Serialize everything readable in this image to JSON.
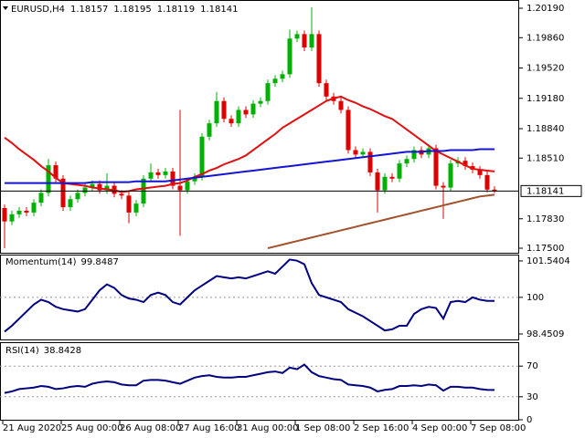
{
  "chart_data": [
    {
      "type": "candlestick",
      "title": "EURUSD,H4",
      "categories": [
        "21 Aug 2020",
        null,
        null,
        null,
        null,
        null,
        null,
        null,
        "25 Aug 00:00",
        null,
        null,
        null,
        null,
        null,
        null,
        null,
        "26 Aug 08:00",
        null,
        null,
        null,
        null,
        null,
        null,
        null,
        "27 Aug 16:00",
        null,
        null,
        null,
        null,
        null,
        null,
        null,
        "31 Aug 00:00",
        null,
        null,
        null,
        null,
        null,
        null,
        null,
        "1 Sep 08:00",
        null,
        null,
        null,
        null,
        null,
        null,
        null,
        "2 Sep 16:00",
        null,
        null,
        null,
        null,
        null,
        null,
        null,
        "4 Sep 00:00",
        null,
        null,
        null,
        null,
        null,
        null,
        null,
        "7 Sep 08:00",
        null,
        null,
        null
      ],
      "ohlc": [
        [
          1.1795,
          1.1799,
          1.175,
          1.178
        ],
        [
          1.178,
          1.1792,
          1.1776,
          1.1788
        ],
        [
          1.1788,
          1.1796,
          1.1784,
          1.1792
        ],
        [
          1.1792,
          1.1796,
          1.1786,
          1.179
        ],
        [
          1.179,
          1.1805,
          1.1786,
          1.1801
        ],
        [
          1.1801,
          1.1816,
          1.1797,
          1.1812
        ],
        [
          1.1812,
          1.185,
          1.1808,
          1.1843
        ],
        [
          1.1843,
          1.1847,
          1.1824,
          1.1828
        ],
        [
          1.1828,
          1.1832,
          1.1792,
          1.1796
        ],
        [
          1.1796,
          1.1809,
          1.1792,
          1.1805
        ],
        [
          1.1805,
          1.1816,
          1.1801,
          1.1812
        ],
        [
          1.1812,
          1.1822,
          1.1808,
          1.1818
        ],
        [
          1.1818,
          1.1826,
          1.1814,
          1.1822
        ],
        [
          1.1822,
          1.1826,
          1.1811,
          1.1815
        ],
        [
          1.1815,
          1.1834,
          1.1811,
          1.182
        ],
        [
          1.182,
          1.1824,
          1.1807,
          1.1811
        ],
        [
          1.1811,
          1.1815,
          1.1805,
          1.1809
        ],
        [
          1.1809,
          1.1813,
          1.1778,
          1.179
        ],
        [
          1.179,
          1.1804,
          1.1786,
          1.18
        ],
        [
          1.18,
          1.1832,
          1.1796,
          1.1828
        ],
        [
          1.1828,
          1.1845,
          1.1824,
          1.1835
        ],
        [
          1.1835,
          1.1839,
          1.1828,
          1.1832
        ],
        [
          1.1832,
          1.184,
          1.1828,
          1.1836
        ],
        [
          1.1836,
          1.184,
          1.1816,
          1.182
        ],
        [
          1.182,
          1.1905,
          1.1764,
          1.1815
        ],
        [
          1.1815,
          1.1829,
          1.1811,
          1.1825
        ],
        [
          1.1825,
          1.1834,
          1.1821,
          1.183
        ],
        [
          1.183,
          1.1879,
          1.1826,
          1.1875
        ],
        [
          1.1875,
          1.1894,
          1.1871,
          1.189
        ],
        [
          1.189,
          1.1925,
          1.1886,
          1.1915
        ],
        [
          1.1915,
          1.1919,
          1.1891,
          1.1895
        ],
        [
          1.1895,
          1.1899,
          1.1886,
          1.189
        ],
        [
          1.189,
          1.1909,
          1.1886,
          1.1905
        ],
        [
          1.1905,
          1.1909,
          1.1896,
          1.19
        ],
        [
          1.19,
          1.1916,
          1.1896,
          1.1912
        ],
        [
          1.1912,
          1.1919,
          1.1908,
          1.1915
        ],
        [
          1.1915,
          1.1939,
          1.1911,
          1.1935
        ],
        [
          1.1935,
          1.1944,
          1.1931,
          1.194
        ],
        [
          1.194,
          1.1949,
          1.1936,
          1.1945
        ],
        [
          1.1945,
          1.1995,
          1.1941,
          1.1985
        ],
        [
          1.1985,
          1.1994,
          1.1981,
          1.199
        ],
        [
          1.199,
          1.1994,
          1.1971,
          1.1975
        ],
        [
          1.1975,
          1.202,
          1.1971,
          1.199
        ],
        [
          1.199,
          1.1994,
          1.1931,
          1.1935
        ],
        [
          1.1935,
          1.1939,
          1.1916,
          1.192
        ],
        [
          1.192,
          1.1924,
          1.1911,
          1.1915
        ],
        [
          1.1915,
          1.1919,
          1.1901,
          1.1905
        ],
        [
          1.1905,
          1.1909,
          1.1856,
          1.186
        ],
        [
          1.186,
          1.1864,
          1.1851,
          1.1855
        ],
        [
          1.1855,
          1.1862,
          1.1851,
          1.1858
        ],
        [
          1.1858,
          1.1862,
          1.1831,
          1.1835
        ],
        [
          1.1835,
          1.1839,
          1.179,
          1.1815
        ],
        [
          1.1815,
          1.1834,
          1.1811,
          1.183
        ],
        [
          1.183,
          1.1834,
          1.1824,
          1.1828
        ],
        [
          1.1828,
          1.1849,
          1.1824,
          1.1845
        ],
        [
          1.1845,
          1.1854,
          1.1841,
          1.185
        ],
        [
          1.185,
          1.1864,
          1.1846,
          1.186
        ],
        [
          1.186,
          1.1864,
          1.1851,
          1.1855
        ],
        [
          1.1855,
          1.1866,
          1.1851,
          1.1862
        ],
        [
          1.1862,
          1.1866,
          1.1816,
          1.182
        ],
        [
          1.182,
          1.1824,
          1.1783,
          1.1818
        ],
        [
          1.1818,
          1.1849,
          1.1814,
          1.1845
        ],
        [
          1.1845,
          1.1852,
          1.1841,
          1.1848
        ],
        [
          1.1848,
          1.1852,
          1.1838,
          1.1842
        ],
        [
          1.1842,
          1.1846,
          1.1834,
          1.1838
        ],
        [
          1.1838,
          1.1842,
          1.1828,
          1.1832
        ],
        [
          1.1832,
          1.1836,
          1.18127,
          1.18157
        ],
        [
          1.18157,
          1.18195,
          1.18119,
          1.18141
        ]
      ],
      "up_color": "#00b000",
      "down_color": "#e00000",
      "series": [
        {
          "color": "#e01010",
          "values": [
            1.1874,
            1.1868,
            1.1861,
            1.1855,
            1.1849,
            1.1842,
            1.1836,
            1.1829,
            1.1823,
            1.1822,
            1.1821,
            1.182,
            1.1818,
            1.1817,
            1.1816,
            1.1815,
            1.1813,
            1.1814,
            1.1816,
            1.1817,
            1.1818,
            1.1819,
            1.182,
            1.1822,
            1.1823,
            1.1826,
            1.183,
            1.1833,
            1.1837,
            1.184,
            1.1844,
            1.1847,
            1.185,
            1.1854,
            1.186,
            1.1866,
            1.1872,
            1.1878,
            1.1885,
            1.189,
            1.1895,
            1.19,
            1.1905,
            1.191,
            1.1915,
            1.1918,
            1.192,
            1.1916,
            1.1913,
            1.1909,
            1.1906,
            1.1902,
            1.1898,
            1.1895,
            1.1889,
            1.1883,
            1.1877,
            1.1871,
            1.1865,
            1.1859,
            1.1855,
            1.1851,
            1.1847,
            1.1843,
            1.1839,
            1.1838,
            1.1837,
            1.1836
          ]
        },
        {
          "color": "#1414d2",
          "values": [
            1.1823,
            1.1823,
            1.1823,
            1.1823,
            1.1823,
            1.1823,
            1.1823,
            1.1823,
            1.1823,
            1.1823,
            1.1823,
            1.1823,
            1.1824,
            1.1824,
            1.1824,
            1.1824,
            1.1824,
            1.1824,
            1.1825,
            1.1825,
            1.1825,
            1.1825,
            1.1825,
            1.1826,
            1.1827,
            1.1828,
            1.1829,
            1.183,
            1.1831,
            1.1832,
            1.1833,
            1.1834,
            1.1835,
            1.1836,
            1.1837,
            1.1838,
            1.1839,
            1.184,
            1.1841,
            1.1842,
            1.1843,
            1.1844,
            1.1845,
            1.1846,
            1.1847,
            1.1848,
            1.1849,
            1.185,
            1.1851,
            1.1852,
            1.1853,
            1.1854,
            1.1855,
            1.1856,
            1.1857,
            1.1858,
            1.1858,
            1.1858,
            1.1859,
            1.1859,
            1.1859,
            1.186,
            1.186,
            1.186,
            1.186,
            1.1861,
            1.1861,
            1.1861
          ]
        },
        {
          "color": "#a0522d",
          "values": [
            null,
            null,
            null,
            null,
            null,
            null,
            null,
            null,
            null,
            null,
            null,
            null,
            null,
            null,
            null,
            null,
            null,
            null,
            null,
            null,
            null,
            null,
            null,
            null,
            null,
            null,
            null,
            null,
            null,
            null,
            null,
            null,
            null,
            null,
            null,
            null,
            1.175,
            1.1752,
            1.1754,
            1.1756,
            1.1758,
            1.176,
            1.1762,
            1.1764,
            1.1766,
            1.1768,
            1.177,
            1.1772,
            1.1774,
            1.1776,
            1.1778,
            1.178,
            1.1782,
            1.1784,
            1.1786,
            1.1788,
            1.179,
            1.1792,
            1.1794,
            1.1796,
            1.1798,
            1.18,
            1.1802,
            1.1804,
            1.1806,
            1.1808,
            1.1809,
            1.181
          ]
        }
      ],
      "ylim": [
        1.17449,
        1.20272
      ],
      "yticks": [
        {
          "value": 1.2019,
          "label": "1.20190"
        },
        {
          "value": 1.1986,
          "label": "1.19860"
        },
        {
          "value": 1.1952,
          "label": "1.19520"
        },
        {
          "value": 1.1918,
          "label": "1.19180"
        },
        {
          "value": 1.1884,
          "label": "1.18840"
        },
        {
          "value": 1.1851,
          "label": "1.18510"
        },
        {
          "value": 1.1783,
          "label": "1.17830"
        },
        {
          "value": 1.175,
          "label": "1.17500"
        }
      ]
    },
    {
      "type": "line",
      "title": "Momentum(14)",
      "series": [
        {
          "color": "#000080",
          "values": [
            98.55,
            98.8,
            99.1,
            99.4,
            99.7,
            99.9,
            99.8,
            99.6,
            99.5,
            99.45,
            99.4,
            99.5,
            99.9,
            100.3,
            100.55,
            100.4,
            100.1,
            99.95,
            99.9,
            99.8,
            100.1,
            100.2,
            100.1,
            99.8,
            99.7,
            100.0,
            100.3,
            100.5,
            100.7,
            100.9,
            100.85,
            100.8,
            100.85,
            100.8,
            100.9,
            101.0,
            101.1,
            101.0,
            101.3,
            101.6,
            101.55,
            101.4,
            100.6,
            100.1,
            100.0,
            99.9,
            99.8,
            99.5,
            99.35,
            99.2,
            99.0,
            98.8,
            98.6,
            98.65,
            98.8,
            98.8,
            99.3,
            99.5,
            99.6,
            99.55,
            99.1,
            99.8,
            99.85,
            99.8,
            100.0,
            99.9,
            99.85,
            99.8487
          ]
        }
      ],
      "ylim": [
        98.22,
        101.77
      ],
      "yticks": [
        101.5404,
        100,
        98.4509
      ],
      "level_lines": [
        100
      ]
    },
    {
      "type": "line",
      "title": "RSI(14)",
      "series": [
        {
          "color": "#000080",
          "values": [
            35,
            37,
            40,
            41,
            42,
            44,
            43,
            40,
            41,
            43,
            44,
            43,
            47,
            49,
            50,
            49,
            46,
            45,
            45,
            51,
            52,
            52,
            51,
            49,
            47,
            51,
            55,
            57,
            58,
            56,
            55,
            55,
            56,
            56,
            58,
            60,
            62,
            63,
            61,
            68,
            66,
            72,
            62,
            57,
            55,
            53,
            52,
            46,
            45,
            44,
            42,
            37,
            39,
            40,
            44,
            44,
            45,
            44,
            46,
            45,
            38,
            43,
            43,
            42,
            42,
            40,
            39,
            38.8428
          ]
        }
      ],
      "ylim": [
        0,
        100
      ],
      "yticks": [
        70,
        30,
        0
      ],
      "level_lines": [
        70,
        30
      ]
    }
  ]
}
